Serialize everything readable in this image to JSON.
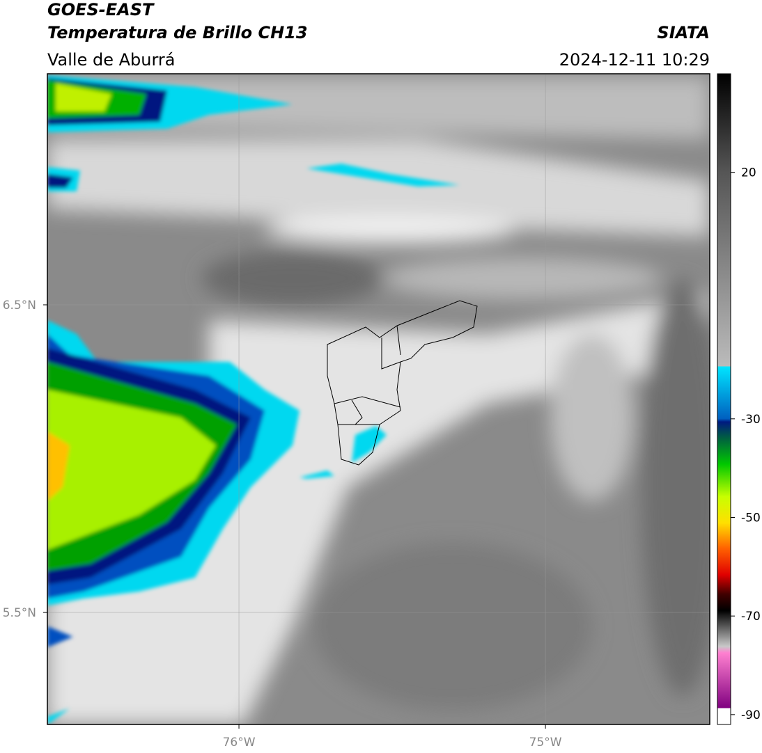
{
  "header": {
    "title": "GOES-EAST",
    "subtitle": "Temperatura de Brillo CH13",
    "region": "Valle de Aburrá",
    "source": "SIATA",
    "timestamp": "2024-12-11 10:29"
  },
  "map": {
    "xlim": [
      -76.625,
      -74.464
    ],
    "ylim": [
      5.136,
      7.251
    ],
    "xticks": [
      {
        "value": -76,
        "label": "76°W"
      },
      {
        "value": -75,
        "label": "75°W"
      }
    ],
    "yticks": [
      {
        "value": 6.5,
        "label": "6.5°N"
      },
      {
        "value": 5.5,
        "label": "5.5°N"
      }
    ],
    "grid": true
  },
  "colorbar": {
    "lim": [
      -92,
      40
    ],
    "ticks": [
      20,
      -30,
      -50,
      -70,
      -90
    ]
  }
}
